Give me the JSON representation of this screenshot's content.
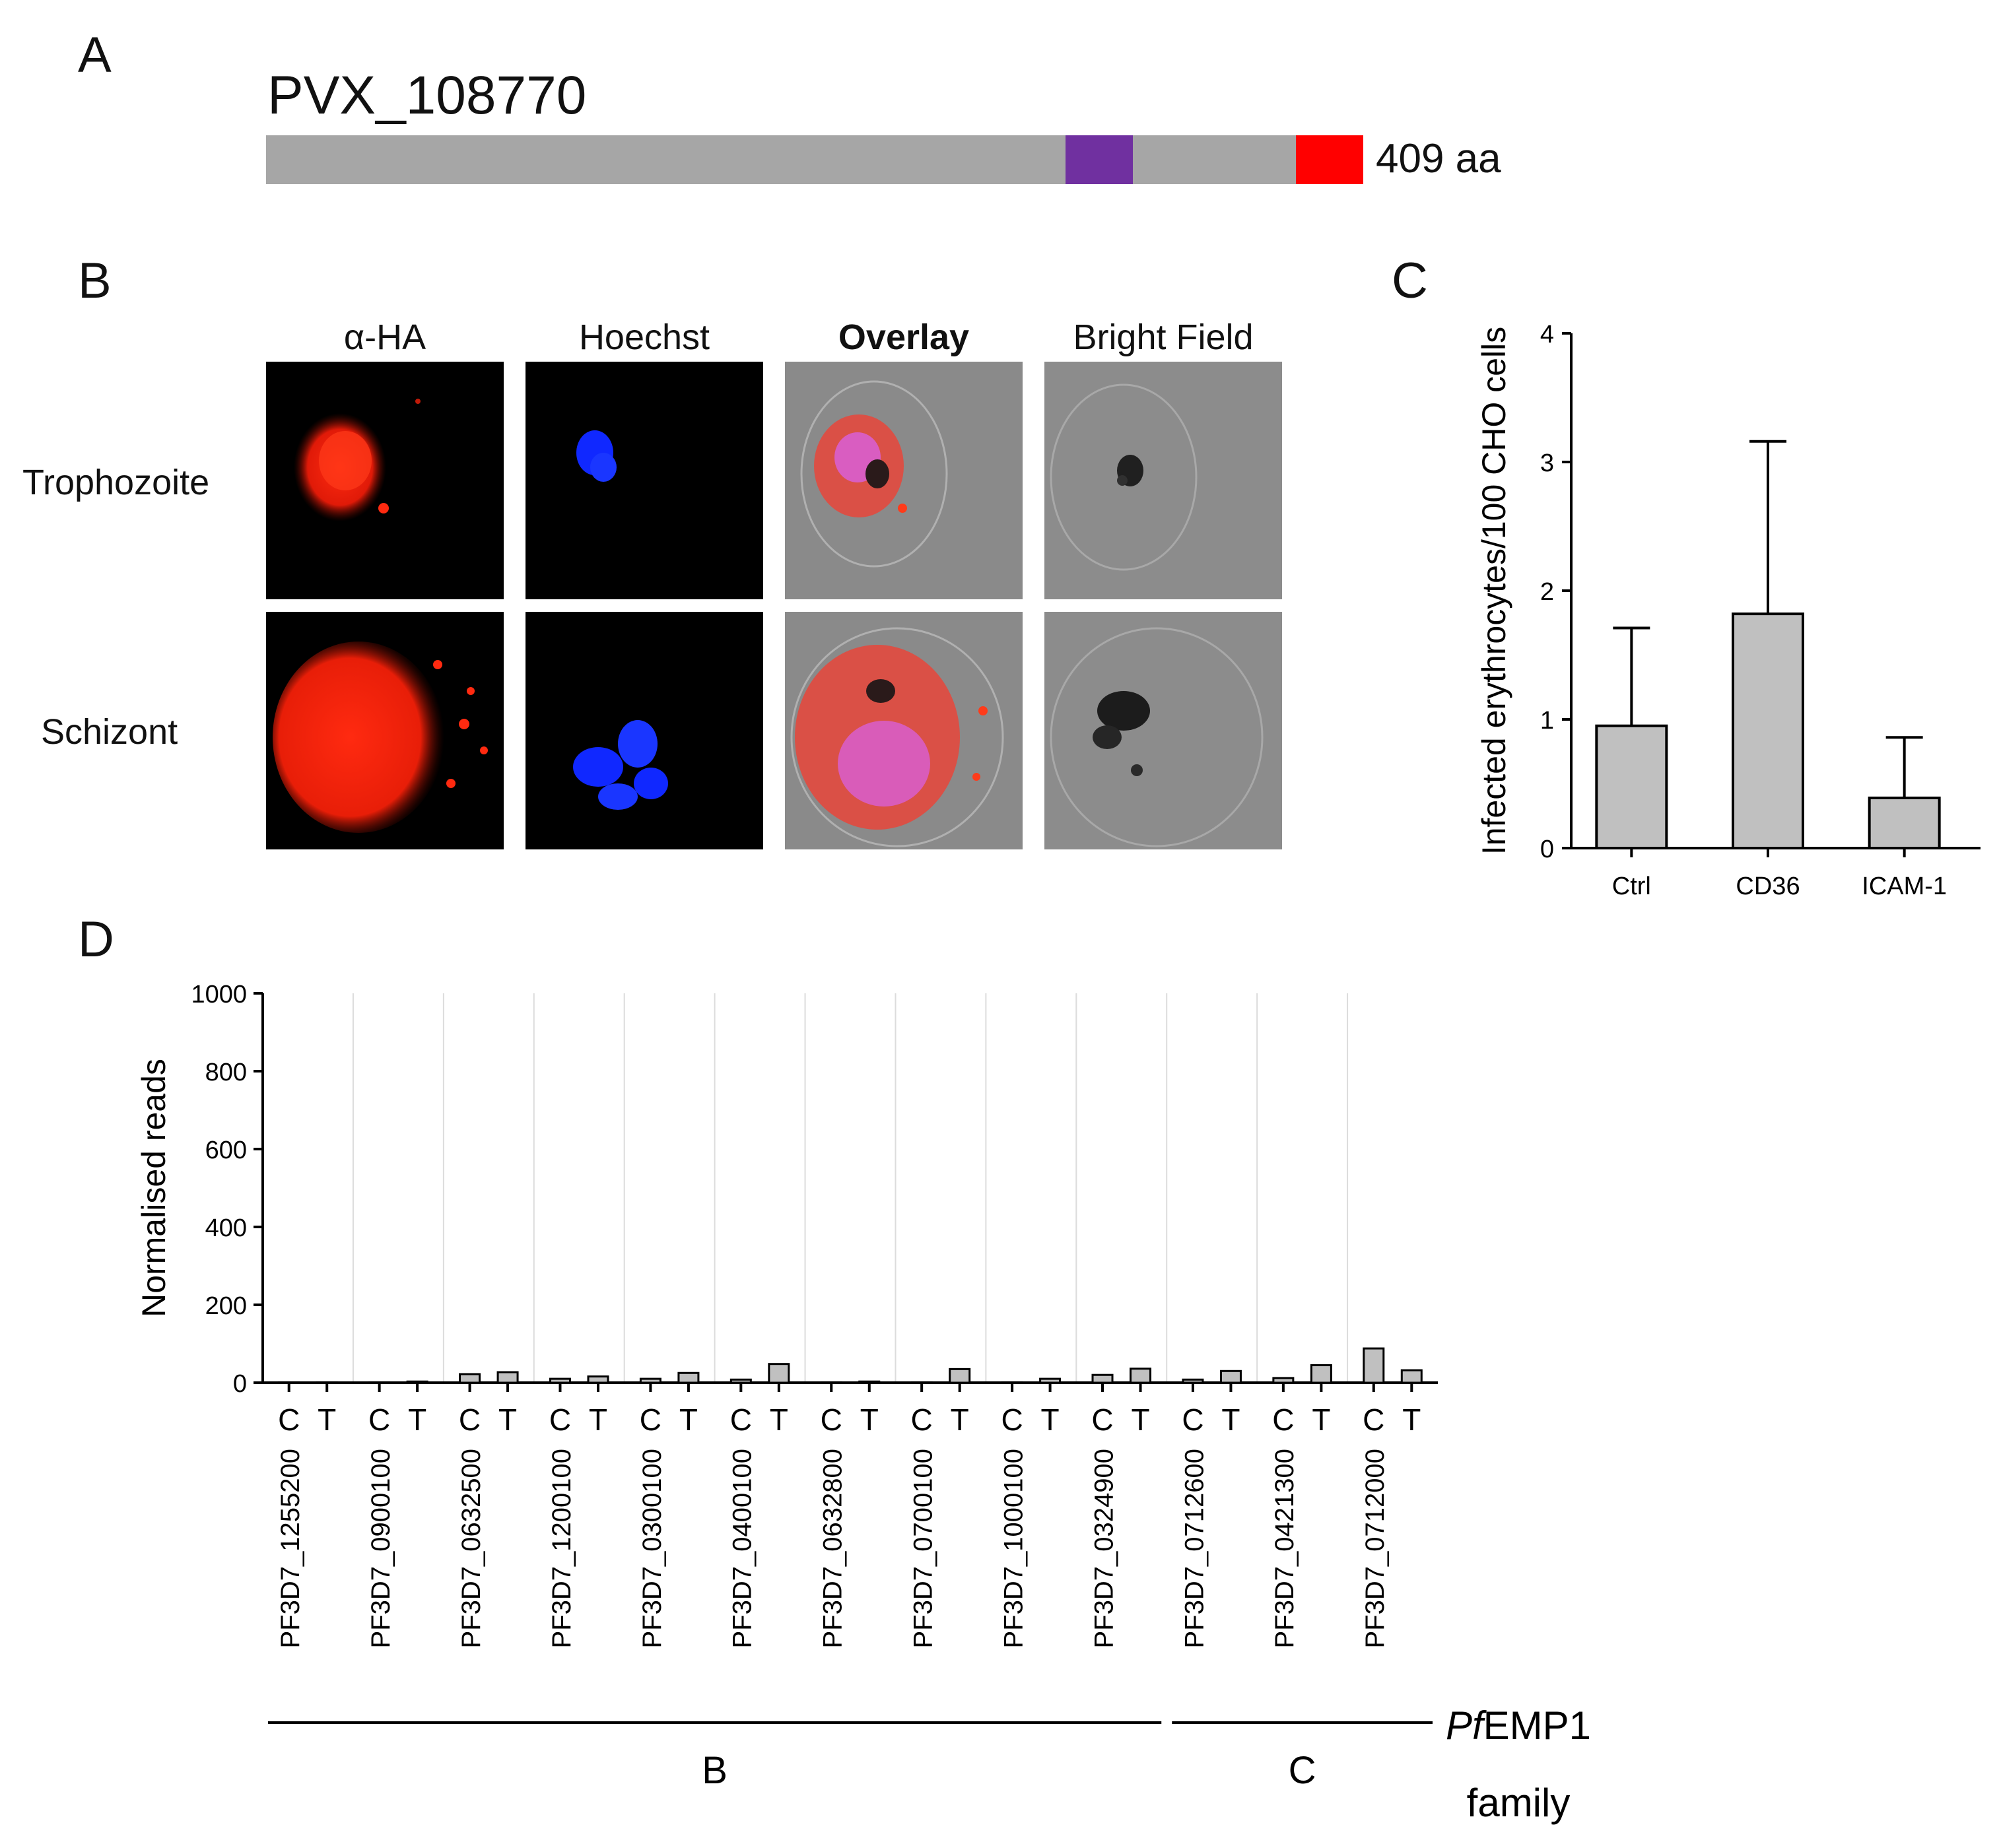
{
  "panels": {
    "a": "A",
    "b": "B",
    "c": "C",
    "d": "D"
  },
  "panel_a": {
    "protein": "PVX_108770",
    "length_label": "409 aa",
    "length_aa": 409,
    "domains": [
      {
        "name": "purple domain",
        "start_aa": 298,
        "end_aa": 323,
        "color": "#7030a0"
      },
      {
        "name": "red domain",
        "start_aa": 384,
        "end_aa": 409,
        "color": "#ff0000"
      }
    ],
    "track_color": "#a6a6a6"
  },
  "panel_b": {
    "columns": [
      "α-HA",
      "Hoechst",
      "Overlay",
      "Bright Field"
    ],
    "rows": [
      "Trophozoite",
      "Schizont"
    ]
  },
  "chart_data": [
    {
      "id": "C",
      "type": "bar",
      "categories": [
        "Ctrl",
        "CD36",
        "ICAM-1"
      ],
      "values": [
        0.95,
        1.82,
        0.39
      ],
      "error_plus": [
        0.76,
        1.34,
        0.47
      ],
      "ylabel": "Infected erythrocytes/100 CHO cells",
      "ylim": [
        0,
        4
      ],
      "yticks": [
        "0",
        "1",
        "2",
        "3",
        "4"
      ],
      "bar_color": "#c0c0c0"
    },
    {
      "id": "D",
      "type": "bar",
      "ylabel": "Normalised reads",
      "ylim": [
        0,
        1000
      ],
      "yticks": [
        "0",
        "200",
        "400",
        "600",
        "800",
        "1000"
      ],
      "sub_labels": [
        "C",
        "T"
      ],
      "genes": [
        "PF3D7_1255200",
        "PF3D7_0900100",
        "PF3D7_0632500",
        "PF3D7_1200100",
        "PF3D7_0300100",
        "PF3D7_0400100",
        "PF3D7_0632800",
        "PF3D7_0700100",
        "PF3D7_1000100",
        "PF3D7_0324900",
        "PF3D7_0712600",
        "PF3D7_0421300",
        "PF3D7_0712000"
      ],
      "series": [
        {
          "name": "C",
          "values": [
            1,
            1,
            22,
            10,
            10,
            8,
            1,
            1,
            1,
            20,
            8,
            12,
            88
          ]
        },
        {
          "name": "T",
          "values": [
            1,
            3,
            27,
            16,
            25,
            48,
            3,
            35,
            10,
            36,
            30,
            45,
            32
          ]
        }
      ],
      "groups": [
        {
          "label": "B",
          "from": 0,
          "to": 9
        },
        {
          "label": "C",
          "from": 10,
          "to": 12
        }
      ],
      "family_label_italic": "Pf",
      "family_label_rest": "EMP1",
      "family_label_line2": "family",
      "bar_color": "#c0c0c0"
    }
  ]
}
